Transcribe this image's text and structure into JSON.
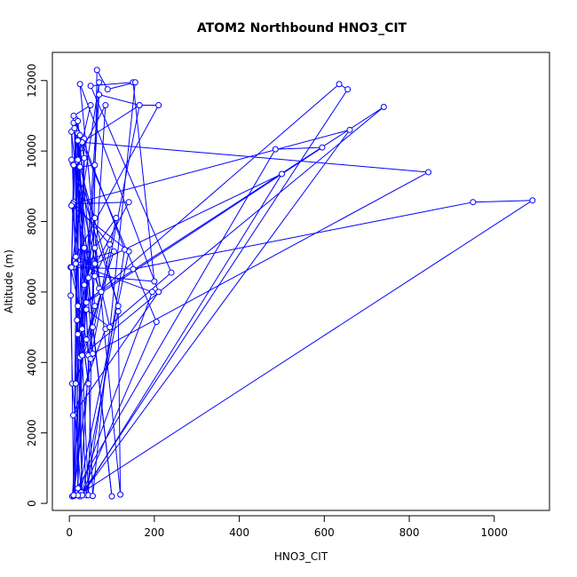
{
  "chart_data": {
    "type": "line",
    "title": "ATOM2 Northbound HNO3_CIT",
    "xlabel": "HNO3_CIT",
    "ylabel": "Altitude (m)",
    "xlim": [
      -40,
      1130
    ],
    "ylim": [
      -200,
      12800
    ],
    "xticks": [
      0,
      200,
      400,
      600,
      800,
      1000
    ],
    "yticks": [
      0,
      2000,
      4000,
      6000,
      8000,
      10000,
      12000
    ],
    "grid": false,
    "legend": "none",
    "series": [
      {
        "color": "#0000ff",
        "marker": "open-circle",
        "line": true,
        "x": [
          28,
          7,
          3,
          15,
          20,
          35,
          70,
          10,
          95,
          60,
          200,
          150,
          50,
          240,
          85,
          9,
          210,
          25,
          120,
          115,
          30,
          15,
          55,
          100,
          5,
          18,
          60,
          110,
          45,
          20,
          35,
          12,
          70,
          165,
          30,
          845,
          55,
          10,
          205,
          28,
          660,
          8,
          140,
          45,
          20,
          12,
          25,
          60,
          7,
          485,
          595,
          40,
          635,
          655,
          25,
          85,
          15,
          35,
          5,
          140,
          20,
          1090,
          950,
          150,
          10,
          45,
          20,
          740,
          25,
          40,
          130,
          10,
          50,
          20,
          115,
          8,
          30,
          500,
          60,
          15,
          210,
          165,
          50,
          10,
          25,
          35,
          20,
          195,
          15,
          105,
          40,
          3,
          10,
          20,
          60,
          30,
          45,
          65,
          90,
          155,
          55,
          40,
          95,
          10,
          5,
          70,
          30,
          20,
          75,
          15,
          60,
          5
        ],
        "y": [
          310,
          3400,
          5900,
          10600,
          430,
          7250,
          6100,
          8550,
          7350,
          6450,
          6300,
          11950,
          11850,
          6550,
          4950,
          2500,
          6000,
          11900,
          250,
          5450,
          230,
          10900,
          5000,
          200,
          10550,
          5200,
          7250,
          8100,
          4200,
          10500,
          10350,
          230,
          11600,
          11300,
          10250,
          9400,
          4250,
          10800,
          5150,
          230,
          10600,
          8500,
          8550,
          6400,
          4800,
          10650,
          9550,
          9600,
          200,
          10050,
          10100,
          5700,
          11900,
          11750,
          200,
          11300,
          9700,
          6200,
          8450,
          7150,
          230,
          8600,
          8550,
          6650,
          6700,
          3400,
          5600,
          11250,
          4150,
          230,
          7200,
          11000,
          11300,
          9750,
          5600,
          9650,
          230,
          9350,
          6800,
          7000,
          11300,
          11300,
          4100,
          210,
          10450,
          9800,
          230,
          6000,
          6800,
          7150,
          4650,
          6700,
          230,
          10850,
          5600,
          4200,
          230,
          12300,
          11750,
          11950,
          210,
          5500,
          5000,
          9600,
          6700,
          11950,
          4950,
          10300,
          6000,
          3400,
          8100,
          9750
        ]
      }
    ]
  }
}
